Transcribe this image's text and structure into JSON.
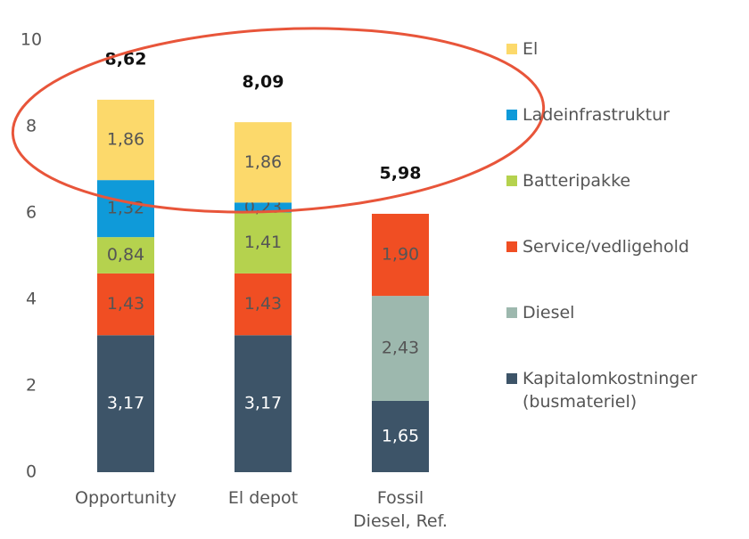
{
  "chart_data": {
    "type": "stacked_bar",
    "categories": [
      "Opportunity",
      "El depot",
      "Fossil\nDiesel, Ref."
    ],
    "series": [
      {
        "name": "Kapitalomkostninger\n(busmateriel)",
        "color": "#3d5468",
        "label_color": "#ffffff",
        "values": [
          3.17,
          3.17,
          1.65
        ],
        "value_labels": [
          "3,17",
          "3,17",
          "1,65"
        ]
      },
      {
        "name": "Diesel",
        "color": "#9db8ae",
        "label_color": "#555555",
        "values": [
          null,
          null,
          2.43
        ],
        "value_labels": [
          null,
          null,
          "2,43"
        ]
      },
      {
        "name": "Service/vedligehold",
        "color": "#f04e23",
        "label_color": "#555555",
        "values": [
          1.43,
          1.43,
          1.9
        ],
        "value_labels": [
          "1,43",
          "1,43",
          "1,90"
        ]
      },
      {
        "name": "Batteripakke",
        "color": "#b5d24e",
        "label_color": "#555555",
        "values": [
          0.84,
          1.41,
          null
        ],
        "value_labels": [
          "0,84",
          "1,41",
          null
        ]
      },
      {
        "name": "Ladeinfrastruktur",
        "color": "#0f9ad9",
        "label_color": "#555555",
        "values": [
          1.32,
          0.23,
          null
        ],
        "value_labels": [
          "1,32",
          "0,23",
          null
        ]
      },
      {
        "name": "El",
        "color": "#fcd96b",
        "label_color": "#555555",
        "values": [
          1.86,
          1.86,
          null
        ],
        "value_labels": [
          "1,86",
          "1,86",
          null
        ]
      }
    ],
    "totals": [
      8.62,
      8.09,
      5.98
    ],
    "total_labels": [
      "8,62",
      "8,09",
      "5,98"
    ],
    "ylim": [
      0,
      10
    ],
    "yticks": [
      0,
      2,
      4,
      6,
      8,
      10
    ],
    "grid": false,
    "legend": "right"
  }
}
